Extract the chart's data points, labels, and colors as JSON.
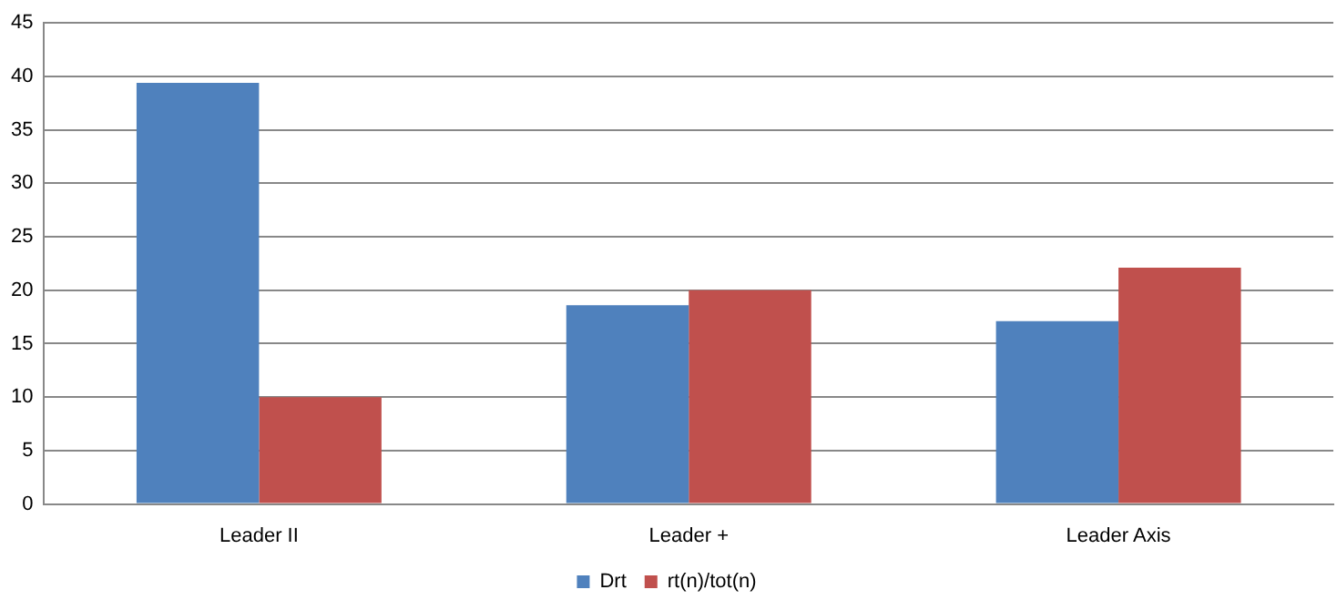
{
  "chart_data": {
    "type": "bar",
    "categories": [
      "Leader II",
      "Leader +",
      "Leader Axis"
    ],
    "series": [
      {
        "name": "Drt",
        "color": "#4f81bd",
        "values": [
          39.4,
          18.6,
          17.1
        ]
      },
      {
        "name": "rt(n)/tot(n)",
        "color": "#c0504d",
        "values": [
          10,
          20,
          22.1
        ]
      }
    ],
    "ylim": [
      0,
      45
    ],
    "yticks": [
      0,
      5,
      10,
      15,
      20,
      25,
      30,
      35,
      40,
      45
    ],
    "grid": "y",
    "legend": "bottom"
  }
}
